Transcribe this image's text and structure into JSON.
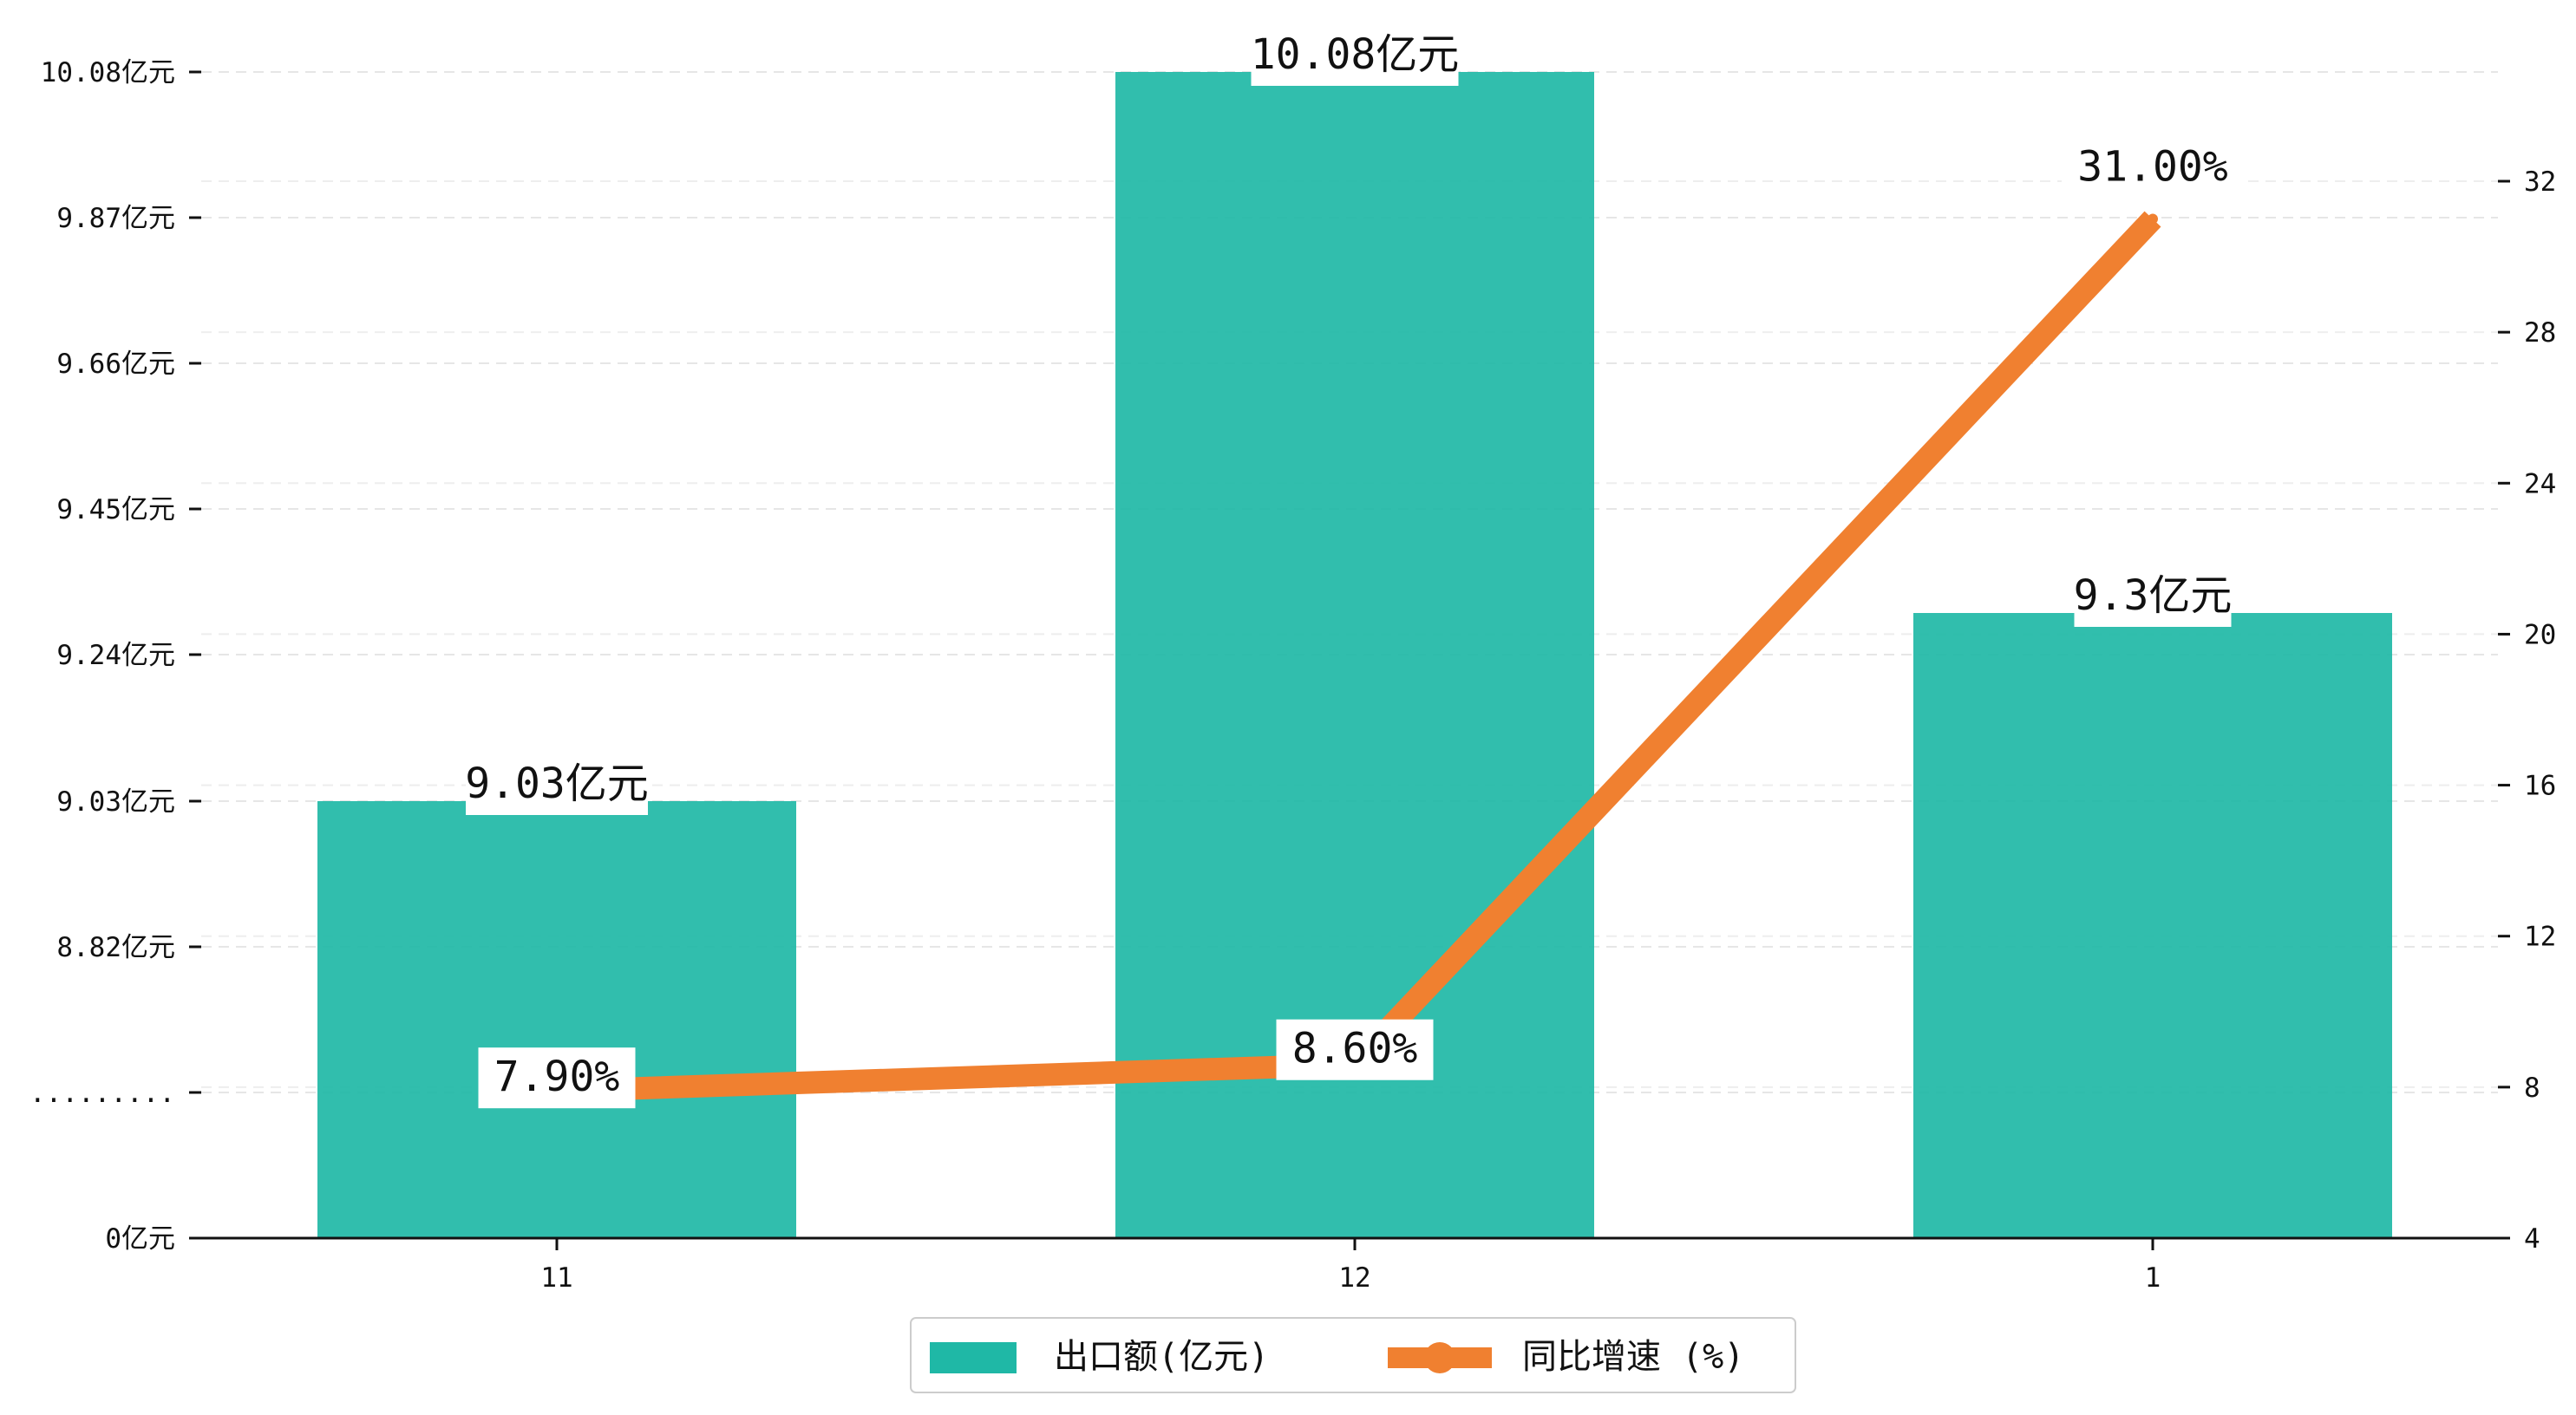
{
  "chart_data": {
    "type": "bar+line",
    "categories": [
      "11",
      "12",
      "1"
    ],
    "bar_series": {
      "name": "出口额(亿元)",
      "values": [
        9.03,
        10.08,
        9.3
      ],
      "labels": [
        "9.03亿元",
        "10.08亿元",
        "9.3亿元"
      ],
      "color": "#1fb8a6"
    },
    "line_series": {
      "name": "同比增速 (%)",
      "values": [
        7.9,
        8.6,
        31.0
      ],
      "labels": [
        "7.90%",
        "8.60%",
        "31.00%"
      ],
      "color": "#f08030"
    },
    "y_left": {
      "ticks": [
        0,
        8.61,
        8.82,
        9.03,
        9.24,
        9.45,
        9.66,
        9.87,
        10.08
      ],
      "tick_labels": [
        "0亿元",
        ".........",
        "8.82亿元",
        "9.03亿元",
        "9.24亿元",
        "9.45亿元",
        "9.66亿元",
        "9.87亿元",
        "10.08亿元"
      ],
      "broken_axis": true
    },
    "y_right": {
      "ylim": [
        4,
        35
      ],
      "ticks": [
        4,
        8,
        12,
        16,
        20,
        24,
        28,
        32
      ],
      "tick_labels": [
        "4",
        "8",
        "12",
        "16",
        "20",
        "24",
        "28",
        "32"
      ]
    },
    "grid": true,
    "legend_position": "bottom-center"
  }
}
